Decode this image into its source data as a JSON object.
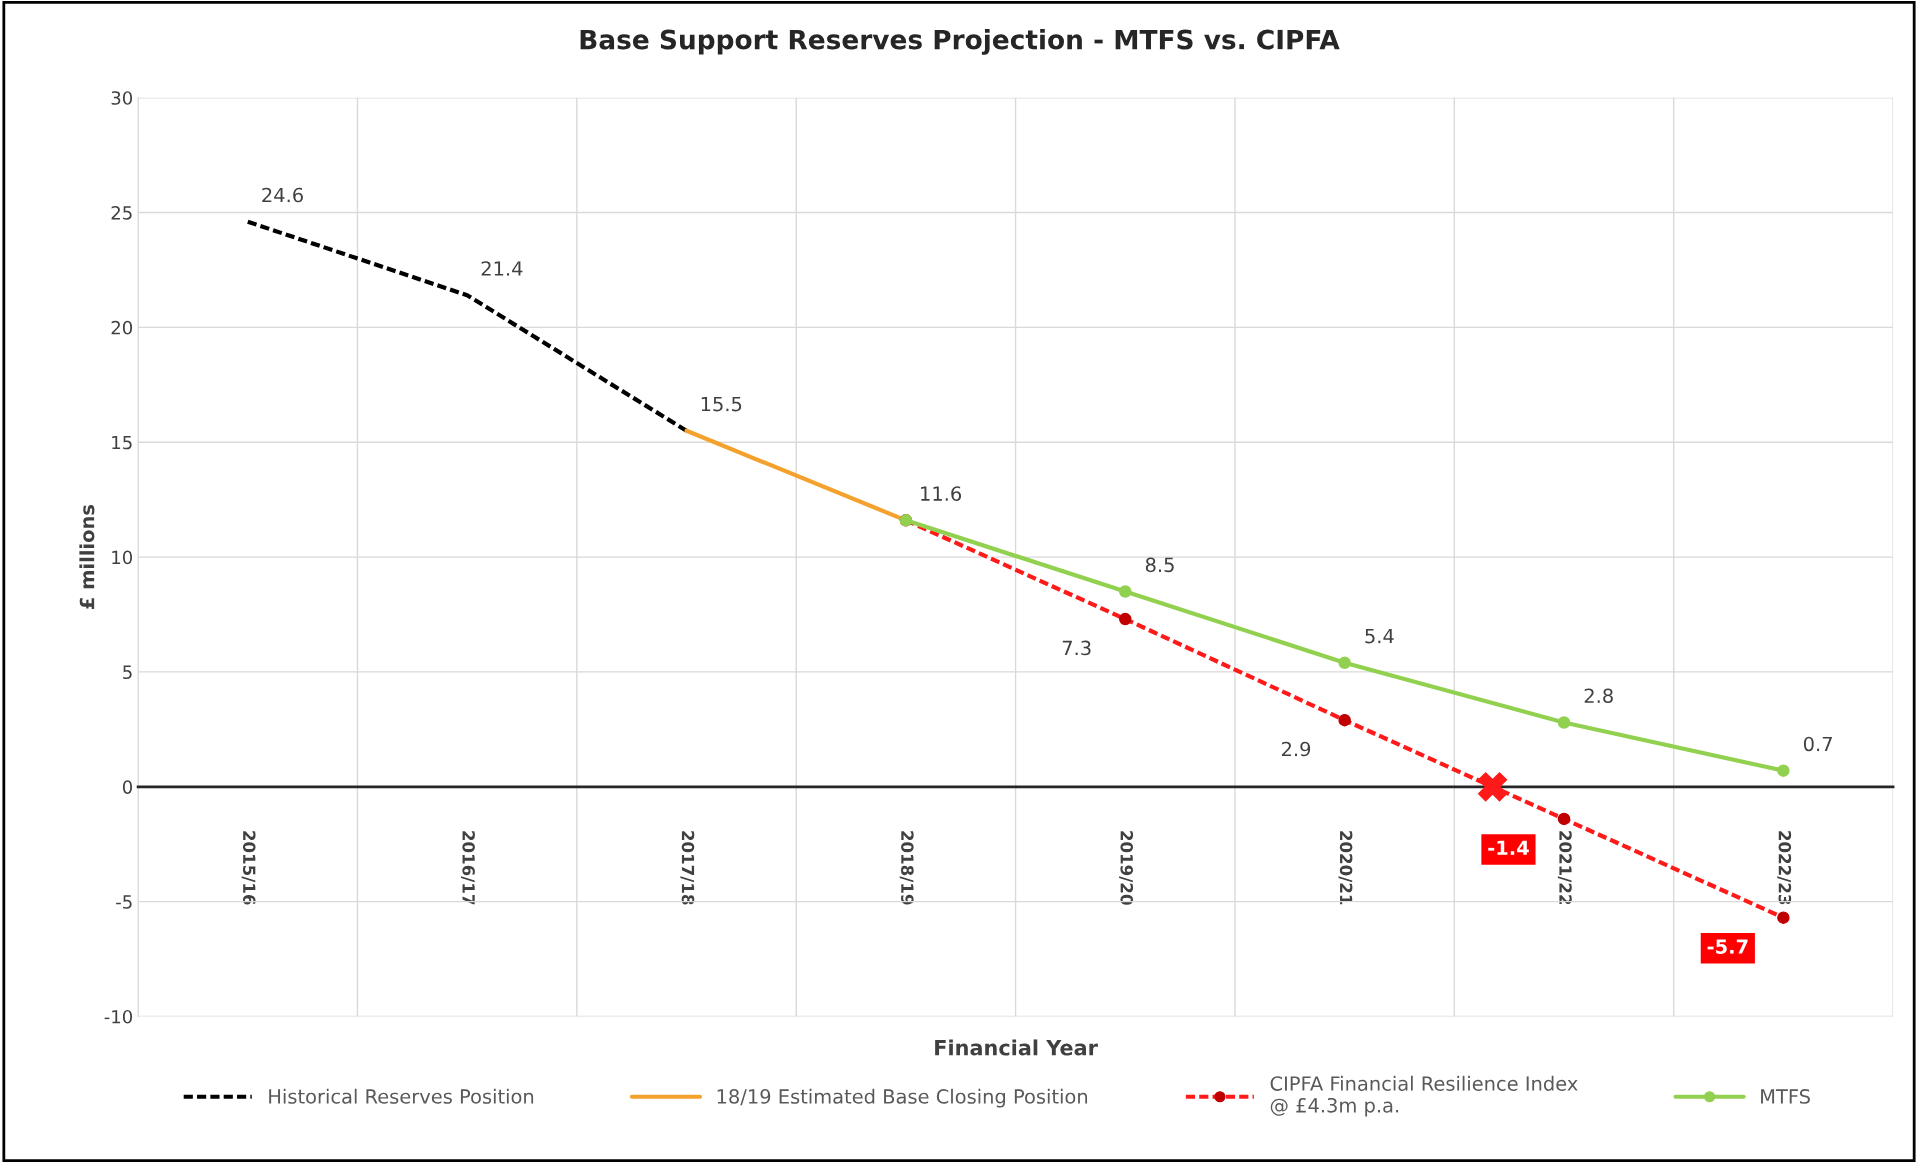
{
  "chart_data": {
    "type": "line",
    "title": "Base Support Reserves Projection - MTFS vs. CIPFA",
    "xlabel": "Financial Year",
    "ylabel": "£ millions",
    "categories": [
      "2015/16",
      "2016/17",
      "2017/18",
      "2018/19",
      "2019/20",
      "2020/21",
      "2021/22",
      "2022/23"
    ],
    "series": [
      {
        "name": "Historical Reserves Position",
        "color": "#000000",
        "line_style": "dashed",
        "values": [
          24.6,
          21.4,
          15.5,
          null,
          null,
          null,
          null,
          null
        ],
        "value_labels": [
          "24.6",
          "21.4",
          "15.5",
          null,
          null,
          null,
          null,
          null
        ]
      },
      {
        "name": "18/19 Estimated Base Closing Position",
        "color": "#f4a22d",
        "line_style": "solid",
        "values": [
          null,
          null,
          15.5,
          11.6,
          null,
          null,
          null,
          null
        ]
      },
      {
        "name": "CIPFA Financial Resilience Index\n@ £4.3m p.a.",
        "color": "#ff1a1a",
        "line_style": "dashed",
        "marker": "circle",
        "values": [
          null,
          null,
          null,
          11.6,
          7.3,
          2.9,
          -1.4,
          -5.7
        ],
        "value_labels": [
          null,
          null,
          null,
          null,
          "7.3",
          "2.9",
          "-1.4",
          "-5.7"
        ]
      },
      {
        "name": "MTFS",
        "color": "#92d050",
        "line_style": "solid",
        "marker": "circle",
        "values": [
          null,
          null,
          null,
          11.6,
          8.5,
          5.4,
          2.8,
          0.7
        ],
        "value_labels": [
          null,
          null,
          null,
          "11.6",
          "8.5",
          "5.4",
          "2.8",
          "0.7"
        ]
      }
    ],
    "ylim": [
      -10,
      30
    ],
    "yticks": [
      -10,
      -5,
      0,
      5,
      10,
      15,
      20,
      25,
      30
    ],
    "grid": true,
    "legend": "bottom"
  }
}
